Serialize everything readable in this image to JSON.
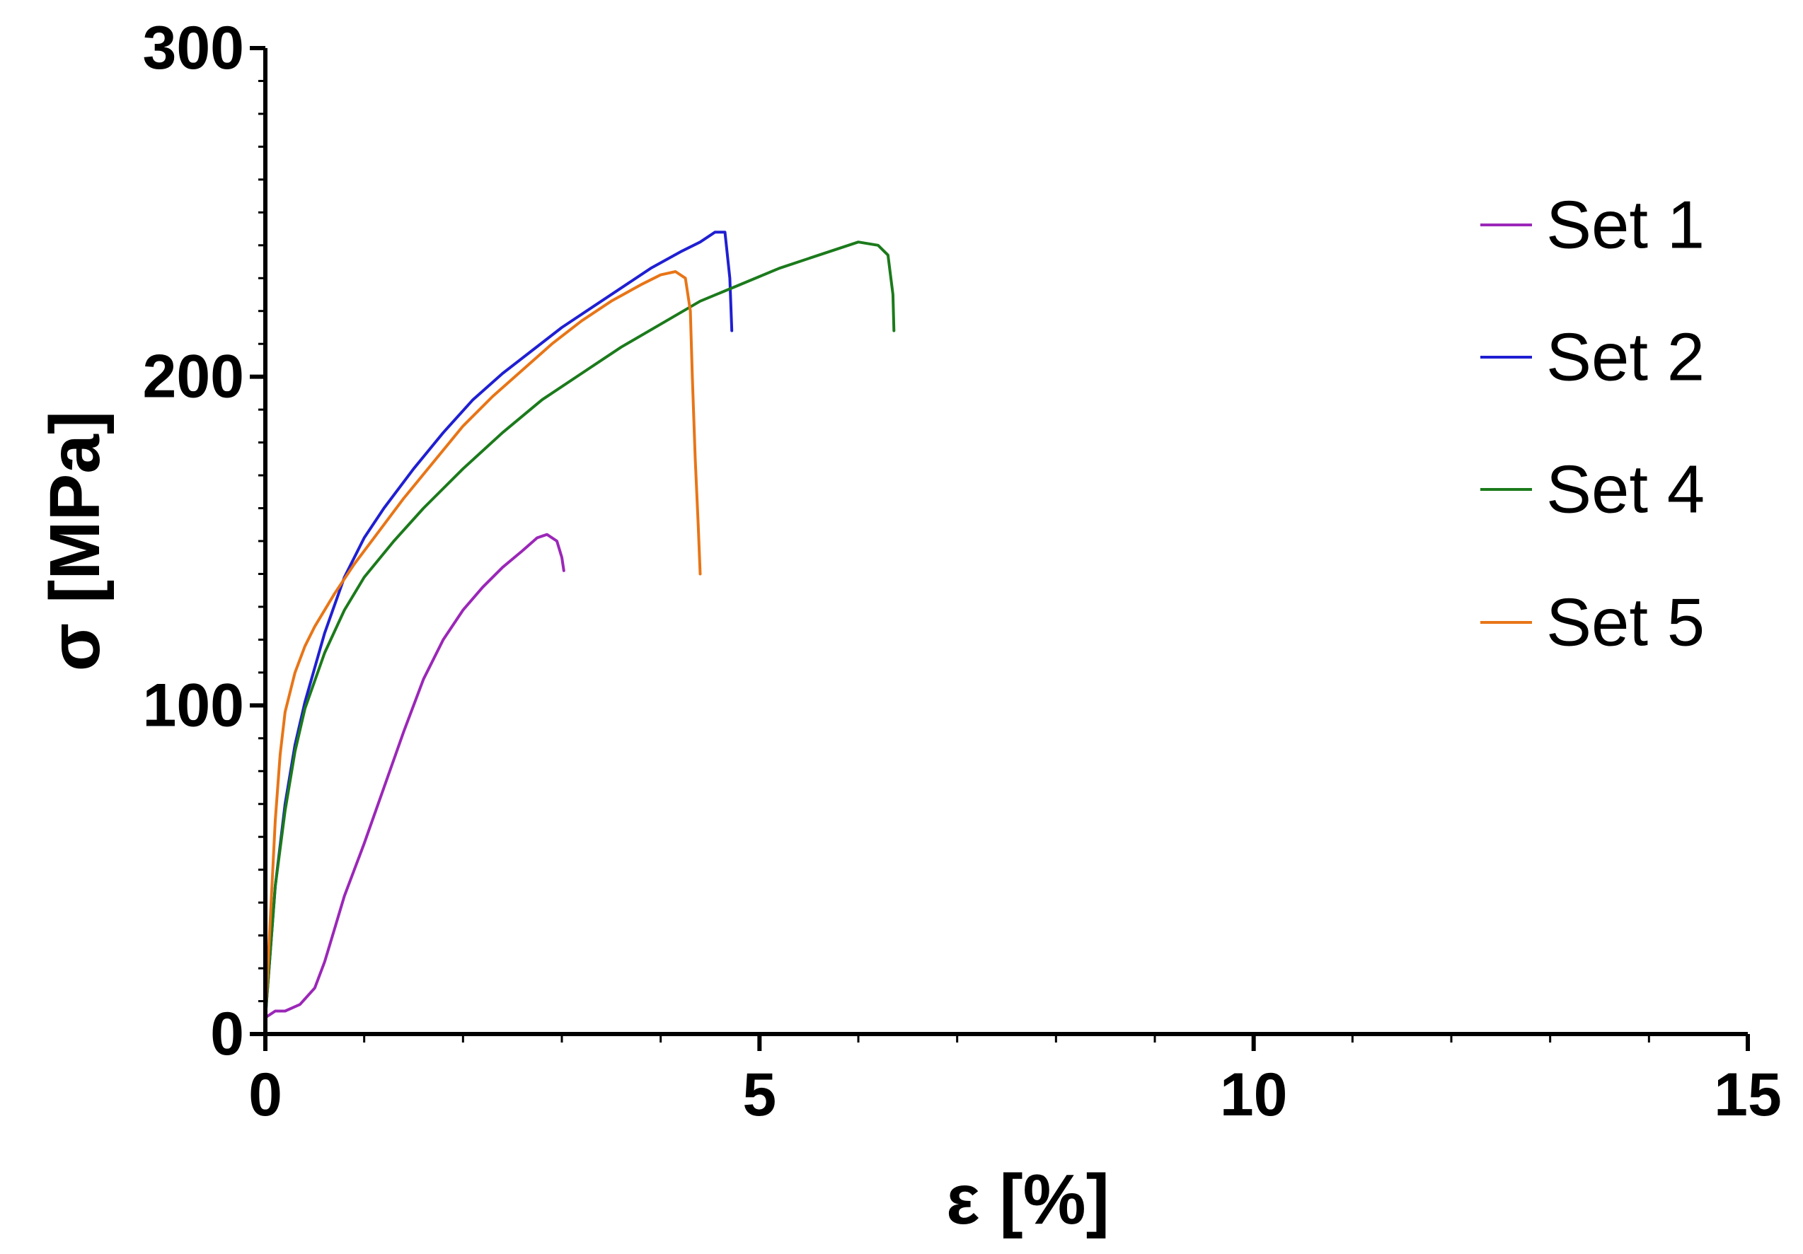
{
  "chart_data": {
    "type": "line",
    "title": "",
    "xlabel": "ε [%]",
    "ylabel": "σ [MPa]",
    "xlim": [
      0,
      15
    ],
    "ylim": [
      0,
      300
    ],
    "xticks": [
      0,
      5,
      10,
      15
    ],
    "yticks": [
      0,
      100,
      200,
      300
    ],
    "xtick_labels": [
      "0",
      "5",
      "10",
      "15"
    ],
    "ytick_labels": [
      "0",
      "100",
      "200",
      "300"
    ],
    "grid": false,
    "legend_position": "right",
    "series": [
      {
        "name": "Set 1",
        "color": "#9b27b8",
        "x": [
          0,
          0.1,
          0.2,
          0.35,
          0.5,
          0.6,
          0.7,
          0.8,
          1.0,
          1.2,
          1.4,
          1.6,
          1.8,
          2.0,
          2.2,
          2.4,
          2.6,
          2.75,
          2.85,
          2.95,
          3.0,
          3.02
        ],
        "y": [
          5,
          7,
          7,
          9,
          14,
          22,
          32,
          42,
          58,
          75,
          92,
          108,
          120,
          129,
          136,
          142,
          147,
          151,
          152,
          150,
          145,
          141
        ]
      },
      {
        "name": "Set 2",
        "color": "#1f1fd2",
        "x": [
          0,
          0.05,
          0.1,
          0.2,
          0.3,
          0.4,
          0.6,
          0.8,
          1.0,
          1.2,
          1.5,
          1.8,
          2.1,
          2.4,
          2.7,
          3.0,
          3.3,
          3.6,
          3.9,
          4.2,
          4.4,
          4.55,
          4.65,
          4.7,
          4.72
        ],
        "y": [
          5,
          25,
          45,
          70,
          88,
          101,
          122,
          139,
          151,
          160,
          172,
          183,
          193,
          201,
          208,
          215,
          221,
          227,
          233,
          238,
          241,
          244,
          244,
          230,
          214
        ]
      },
      {
        "name": "Set 4",
        "color": "#1b7a1b",
        "x": [
          0,
          0.05,
          0.1,
          0.2,
          0.3,
          0.4,
          0.6,
          0.8,
          1.0,
          1.3,
          1.6,
          2.0,
          2.4,
          2.8,
          3.2,
          3.6,
          4.0,
          4.4,
          4.8,
          5.2,
          5.6,
          6.0,
          6.2,
          6.3,
          6.35,
          6.36
        ],
        "y": [
          5,
          25,
          45,
          68,
          86,
          99,
          116,
          129,
          139,
          150,
          160,
          172,
          183,
          193,
          201,
          209,
          216,
          223,
          228,
          233,
          237,
          241,
          240,
          237,
          225,
          214
        ]
      },
      {
        "name": "Set 5",
        "color": "#e87517",
        "x": [
          0,
          0.05,
          0.1,
          0.15,
          0.2,
          0.3,
          0.4,
          0.5,
          0.7,
          0.9,
          1.1,
          1.4,
          1.7,
          2.0,
          2.3,
          2.6,
          2.9,
          3.2,
          3.5,
          3.8,
          4.0,
          4.15,
          4.25,
          4.3,
          4.32,
          4.35,
          4.38,
          4.4
        ],
        "y": [
          5,
          35,
          65,
          85,
          98,
          110,
          118,
          124,
          134,
          143,
          151,
          163,
          174,
          185,
          194,
          202,
          210,
          217,
          223,
          228,
          231,
          232,
          230,
          220,
          200,
          175,
          155,
          140
        ]
      }
    ]
  }
}
